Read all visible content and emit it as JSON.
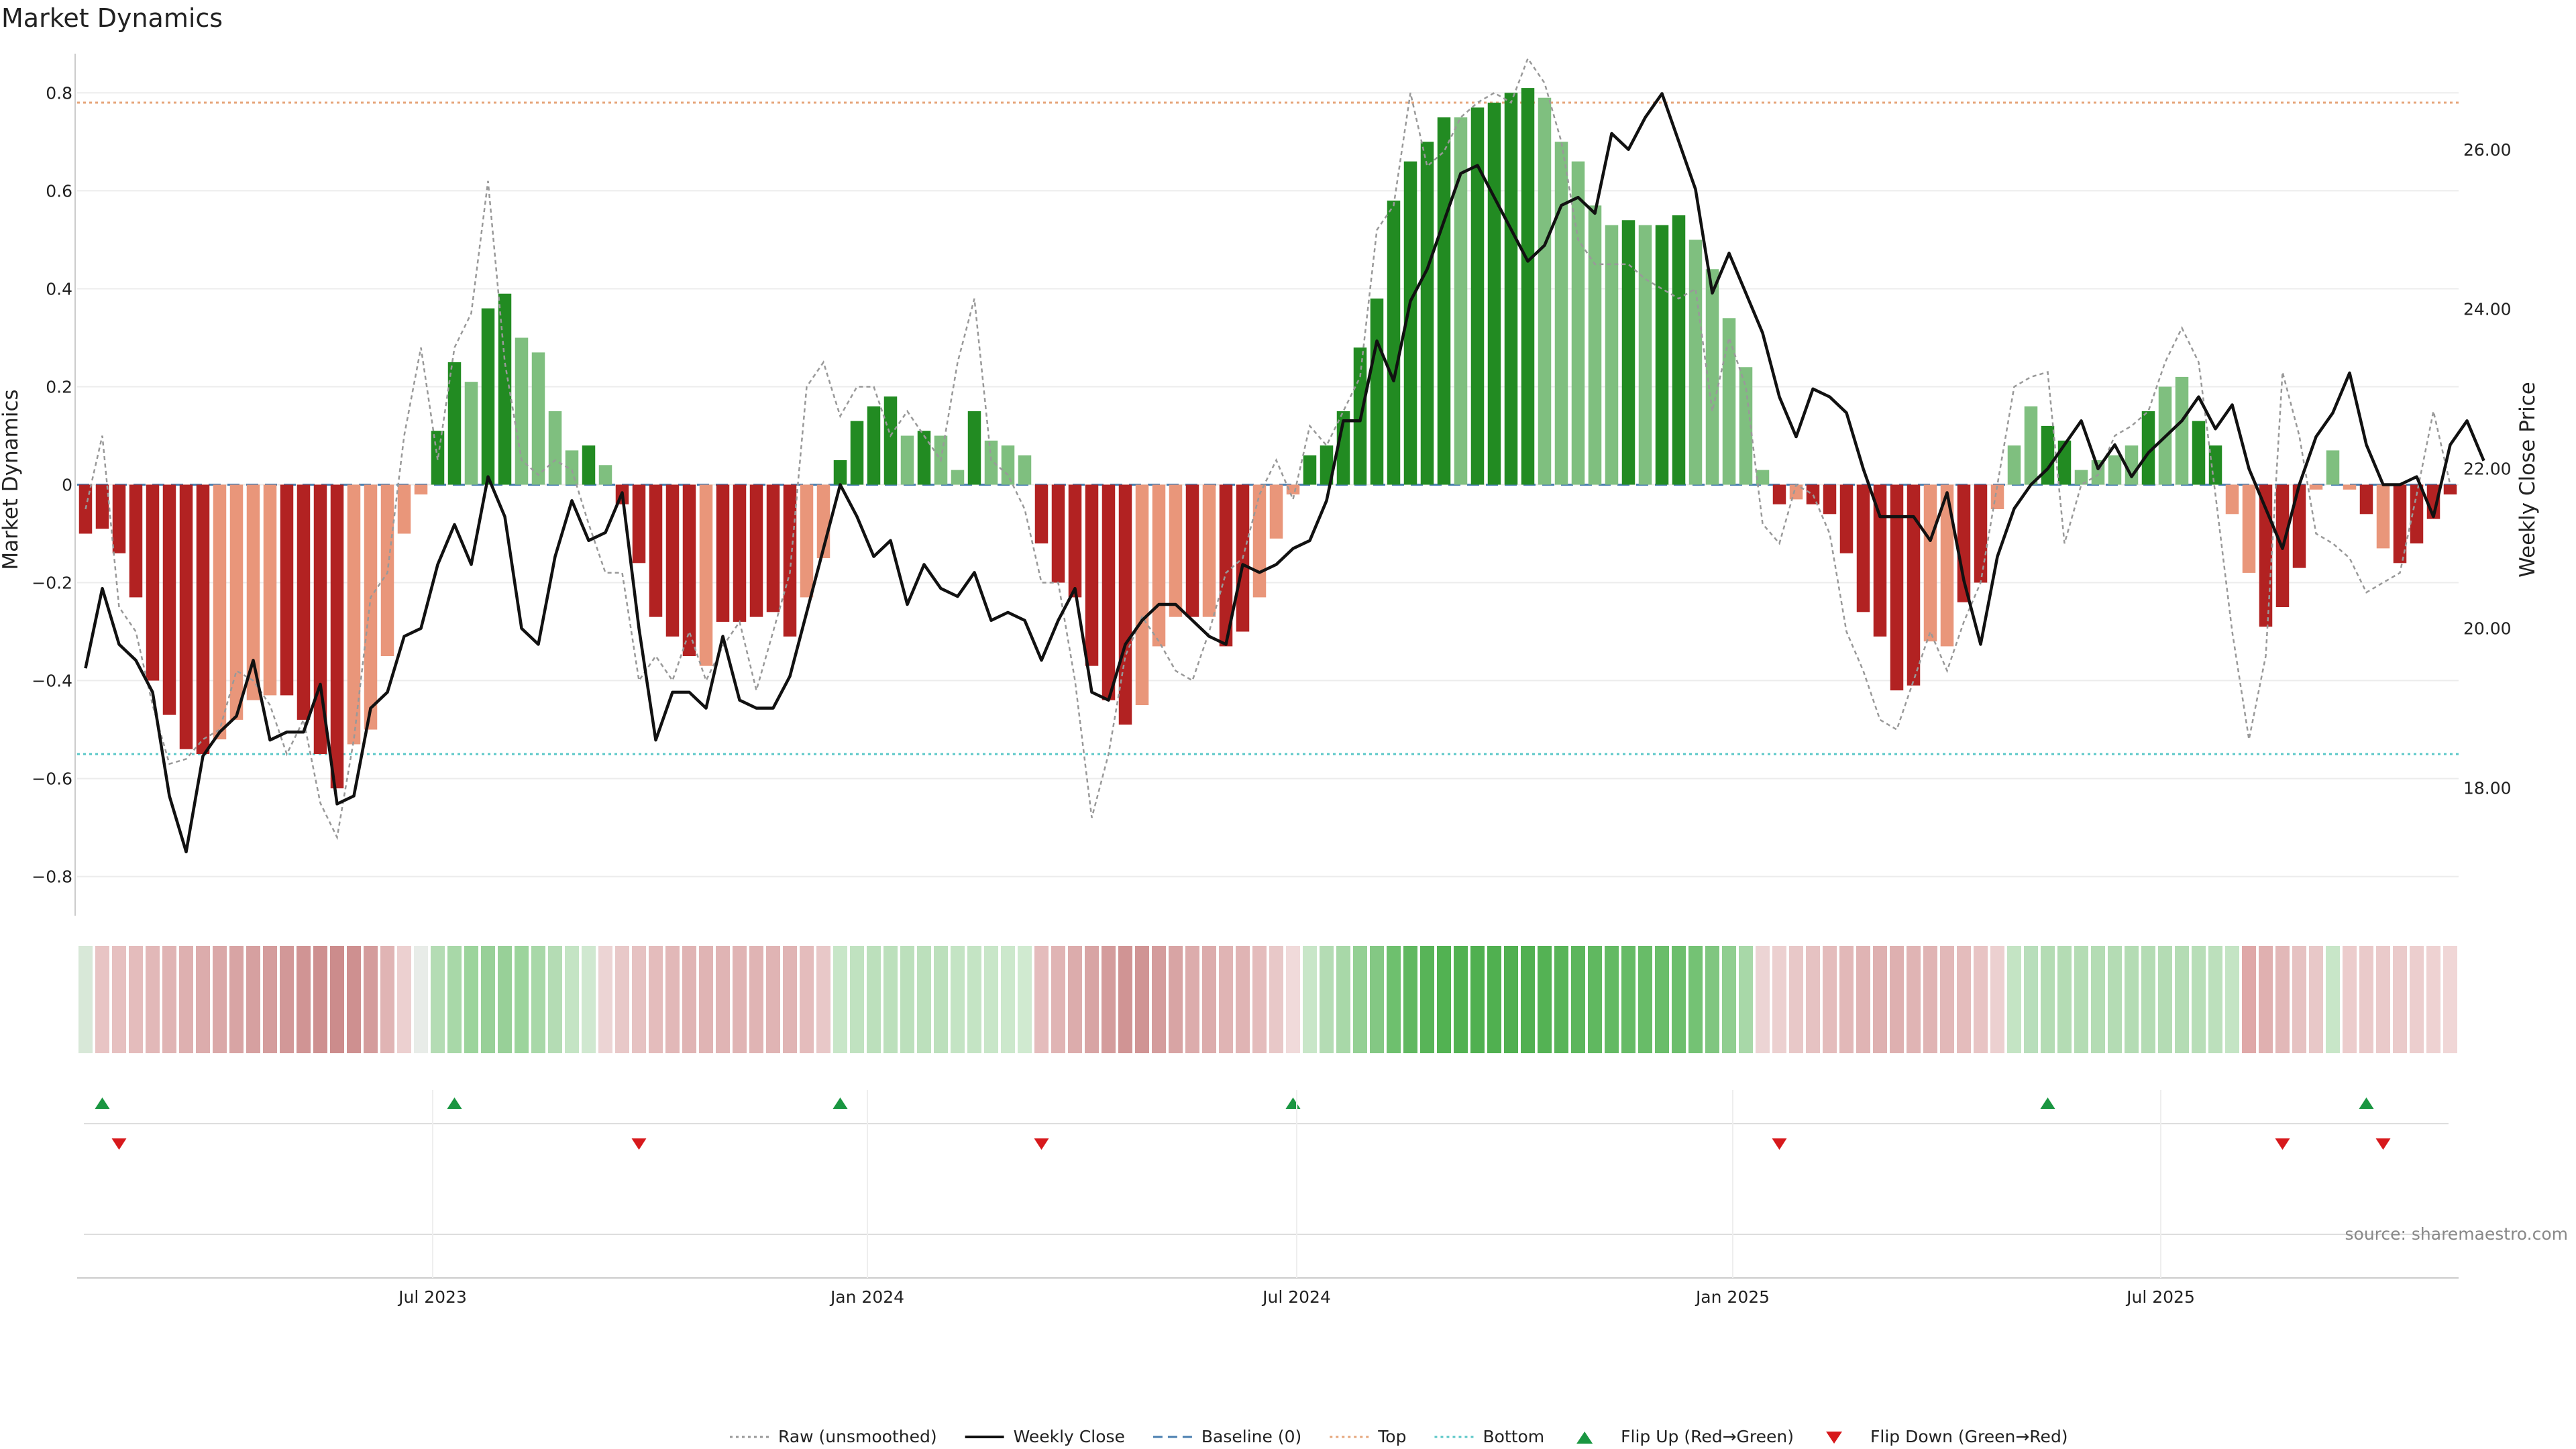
{
  "chart_data": {
    "type": "bar",
    "title": "Market Dynamics",
    "ylabel": "Market Dynamics",
    "y2label": "Weekly Close Price",
    "ylim": [
      -0.88,
      0.88
    ],
    "y2lim": [
      16.4,
      27.2
    ],
    "yticks": [
      -0.8,
      -0.6,
      -0.4,
      -0.2,
      0,
      0.2,
      0.4,
      0.6,
      0.8
    ],
    "y2ticks": [
      "18.00",
      "20.00",
      "22.00",
      "24.00",
      "26.00"
    ],
    "xticks": [
      "Jul 2023",
      "Jan 2024",
      "Jul 2024",
      "Jan 2025",
      "Jul 2025"
    ],
    "top_line": 0.78,
    "bottom_line": -0.55,
    "grid": true,
    "legend_position": "bottom-center",
    "colors": {
      "green_strong": "#228b22",
      "green_light": "#7fbf7f",
      "red_strong": "#b22222",
      "red_light": "#e9967a",
      "top_line": "#e6a57a",
      "bottom_line": "#5bc8c8",
      "baseline": "#4a7fb0",
      "raw": "#999999",
      "close": "#111111",
      "flip_up": "#1a9641",
      "flip_down": "#d7191c"
    },
    "bars": {
      "values": [
        -0.1,
        -0.09,
        -0.14,
        -0.23,
        -0.4,
        -0.47,
        -0.54,
        -0.55,
        -0.52,
        -0.48,
        -0.44,
        -0.43,
        -0.43,
        -0.48,
        -0.55,
        -0.62,
        -0.53,
        -0.5,
        -0.35,
        -0.1,
        -0.02,
        0.11,
        0.25,
        0.21,
        0.36,
        0.39,
        0.3,
        0.27,
        0.15,
        0.07,
        0.08,
        0.04,
        -0.04,
        -0.16,
        -0.27,
        -0.31,
        -0.35,
        -0.37,
        -0.28,
        -0.28,
        -0.27,
        -0.26,
        -0.31,
        -0.23,
        -0.15,
        0.05,
        0.13,
        0.16,
        0.18,
        0.1,
        0.11,
        0.1,
        0.03,
        0.15,
        0.09,
        0.08,
        0.06,
        -0.12,
        -0.2,
        -0.23,
        -0.37,
        -0.44,
        -0.49,
        -0.45,
        -0.33,
        -0.27,
        -0.27,
        -0.27,
        -0.33,
        -0.3,
        -0.23,
        -0.11,
        -0.02,
        0.06,
        0.08,
        0.15,
        0.28,
        0.38,
        0.58,
        0.66,
        0.7,
        0.75,
        0.75,
        0.77,
        0.78,
        0.8,
        0.81,
        0.79,
        0.7,
        0.66,
        0.57,
        0.53,
        0.54,
        0.53,
        0.53,
        0.55,
        0.5,
        0.44,
        0.34,
        0.24,
        0.03,
        -0.04,
        -0.03,
        -0.04,
        -0.06,
        -0.14,
        -0.26,
        -0.31,
        -0.42,
        -0.41,
        -0.32,
        -0.33,
        -0.24,
        -0.2,
        -0.05,
        0.08,
        0.16,
        0.12,
        0.09,
        0.03,
        0.05,
        0.06,
        0.08,
        0.15,
        0.2,
        0.22,
        0.13,
        0.08,
        -0.06,
        -0.18,
        -0.29,
        -0.25,
        -0.17,
        -0.01,
        0.07,
        -0.01,
        -0.06,
        -0.13,
        -0.16,
        -0.12,
        -0.07,
        -0.02
      ],
      "strong": [
        true,
        true,
        true,
        true,
        true,
        true,
        true,
        true,
        false,
        false,
        false,
        false,
        true,
        true,
        true,
        true,
        false,
        false,
        false,
        false,
        false,
        true,
        true,
        false,
        true,
        true,
        false,
        false,
        false,
        false,
        true,
        false,
        true,
        true,
        true,
        true,
        true,
        false,
        true,
        true,
        true,
        true,
        true,
        false,
        false,
        true,
        true,
        true,
        true,
        false,
        true,
        false,
        false,
        true,
        false,
        false,
        false,
        true,
        true,
        true,
        true,
        true,
        true,
        false,
        false,
        false,
        true,
        false,
        true,
        true,
        false,
        false,
        false,
        true,
        true,
        true,
        true,
        true,
        true,
        true,
        true,
        true,
        false,
        true,
        true,
        true,
        true,
        false,
        false,
        false,
        false,
        false,
        true,
        false,
        true,
        true,
        false,
        false,
        false,
        false,
        false,
        true,
        false,
        true,
        true,
        true,
        true,
        true,
        true,
        true,
        false,
        false,
        true,
        true,
        false,
        false,
        false,
        true,
        true,
        false,
        false,
        false,
        false,
        true,
        false,
        false,
        true,
        true,
        false,
        false,
        true,
        true,
        true,
        false,
        false,
        false,
        true,
        false,
        true,
        true,
        true,
        true,
        false,
        false
      ]
    },
    "weekly_close": [
      19.5,
      20.5,
      19.8,
      19.6,
      19.2,
      17.9,
      17.2,
      18.4,
      18.7,
      18.9,
      19.6,
      18.6,
      18.7,
      18.7,
      19.3,
      17.8,
      17.9,
      19.0,
      19.2,
      19.9,
      20.0,
      20.8,
      21.3,
      20.8,
      21.9,
      21.4,
      20.0,
      19.8,
      20.9,
      21.6,
      21.1,
      21.2,
      21.7,
      20.0,
      18.6,
      19.2,
      19.2,
      19.0,
      19.9,
      19.1,
      19.0,
      19.0,
      19.4,
      20.2,
      21.0,
      21.8,
      21.4,
      20.9,
      21.1,
      20.3,
      20.8,
      20.5,
      20.4,
      20.7,
      20.1,
      20.2,
      20.1,
      19.6,
      20.1,
      20.5,
      19.2,
      19.1,
      19.8,
      20.1,
      20.3,
      20.3,
      20.1,
      19.9,
      19.8,
      20.8,
      20.7,
      20.8,
      21.0,
      21.1,
      21.6,
      22.6,
      22.6,
      23.6,
      23.1,
      24.1,
      24.5,
      25.1,
      25.7,
      25.8,
      25.4,
      25.0,
      24.6,
      24.8,
      25.3,
      25.4,
      25.2,
      26.2,
      26.0,
      26.4,
      26.7,
      26.1,
      25.5,
      24.2,
      24.7,
      24.2,
      23.7,
      22.9,
      22.4,
      23.0,
      22.9,
      22.7,
      22.0,
      21.4,
      21.4,
      21.4,
      21.1,
      21.7,
      20.6,
      19.8,
      20.9,
      21.5,
      21.8,
      22.0,
      22.3,
      22.6,
      22.0,
      22.3,
      21.9,
      22.2,
      22.4,
      22.6,
      22.9,
      22.5,
      22.8,
      22.0,
      21.5,
      21.0,
      21.8,
      22.4,
      22.7,
      23.2,
      22.3,
      21.8,
      21.8,
      21.9,
      21.4,
      22.3,
      22.6,
      22.1
    ],
    "raw": [
      -0.05,
      0.1,
      -0.25,
      -0.3,
      -0.45,
      -0.57,
      -0.56,
      -0.52,
      -0.5,
      -0.38,
      -0.4,
      -0.45,
      -0.55,
      -0.48,
      -0.65,
      -0.72,
      -0.52,
      -0.23,
      -0.18,
      0.1,
      0.28,
      0.05,
      0.28,
      0.35,
      0.62,
      0.25,
      0.05,
      0.02,
      0.05,
      0.03,
      -0.08,
      -0.18,
      -0.18,
      -0.4,
      -0.35,
      -0.4,
      -0.3,
      -0.4,
      -0.33,
      -0.28,
      -0.42,
      -0.3,
      -0.18,
      0.2,
      0.25,
      0.14,
      0.2,
      0.2,
      0.1,
      0.15,
      0.1,
      0.05,
      0.25,
      0.38,
      0.05,
      0.02,
      -0.05,
      -0.2,
      -0.2,
      -0.4,
      -0.68,
      -0.55,
      -0.35,
      -0.27,
      -0.32,
      -0.38,
      -0.4,
      -0.3,
      -0.18,
      -0.15,
      -0.02,
      0.05,
      -0.03,
      0.12,
      0.08,
      0.15,
      0.22,
      0.52,
      0.57,
      0.8,
      0.65,
      0.68,
      0.75,
      0.78,
      0.8,
      0.78,
      0.87,
      0.82,
      0.7,
      0.5,
      0.45,
      0.45,
      0.45,
      0.42,
      0.4,
      0.38,
      0.4,
      0.15,
      0.3,
      0.2,
      -0.08,
      -0.12,
      0.0,
      -0.02,
      -0.1,
      -0.3,
      -0.38,
      -0.48,
      -0.5,
      -0.4,
      -0.3,
      -0.38,
      -0.28,
      -0.2,
      0.0,
      0.2,
      0.22,
      0.23,
      -0.12,
      0.0,
      0.02,
      0.1,
      0.12,
      0.15,
      0.25,
      0.32,
      0.25,
      -0.02,
      -0.3,
      -0.52,
      -0.35,
      0.23,
      0.1,
      -0.1,
      -0.12,
      -0.15,
      -0.22,
      -0.2,
      -0.18,
      -0.02,
      0.15,
      0.0
    ],
    "strip_colors": [
      "#d8e8d8",
      "#e8c4c4",
      "#e6c0c0",
      "#e4bcbc",
      "#e2b8b8",
      "#e0b4b4",
      "#deb0b0",
      "#dcacac",
      "#daa8a8",
      "#d8a4a4",
      "#d6a0a0",
      "#d49c9c",
      "#d29898",
      "#d09494",
      "#ce9090",
      "#cc8c8c",
      "#ce9090",
      "#d49c9c",
      "#e0b4b4",
      "#ecd0d0",
      "#e8ecE8",
      "#b4dcb4",
      "#a8d8a8",
      "#9cd49c",
      "#98d098",
      "#98d098",
      "#9cd49c",
      "#a8d8a8",
      "#b4dcb4",
      "#c4e4c4",
      "#d0e8d0",
      "#ecd4d4",
      "#e8c8c8",
      "#e6c2c2",
      "#e4bcbc",
      "#e2b8b8",
      "#e0b4b4",
      "#e0b4b4",
      "#e0b4b4",
      "#e0b4b4",
      "#e0b4b4",
      "#e0b4b4",
      "#e0b4b4",
      "#e4bcbc",
      "#e8c8c8",
      "#c8e6c8",
      "#c0e2c0",
      "#bce0bc",
      "#bce0bc",
      "#bce0bc",
      "#bce0bc",
      "#bce0bc",
      "#c4e4c4",
      "#c4e4c4",
      "#c8e6c8",
      "#cce8cc",
      "#d0eAd0",
      "#e4bcbc",
      "#e0b4b4",
      "#dcacac",
      "#d8a4a4",
      "#d49c9c",
      "#d09494",
      "#d09494",
      "#d49c9c",
      "#d8a4a4",
      "#dcacac",
      "#dcacac",
      "#e0b4b4",
      "#e0b4b4",
      "#e4bcbc",
      "#e8c8c8",
      "#f0dada",
      "#c8e6c8",
      "#b4dcb4",
      "#a8d8a8",
      "#94d094",
      "#84c884",
      "#6ec06e",
      "#60b860",
      "#58b458",
      "#52b252",
      "#52b252",
      "#50b050",
      "#50b050",
      "#50b050",
      "#50b050",
      "#54b254",
      "#58b458",
      "#5cb65c",
      "#60b860",
      "#64ba64",
      "#66bb66",
      "#68bc68",
      "#6abd6a",
      "#6cbe6c",
      "#74c274",
      "#80c680",
      "#90ce90",
      "#a8d8a8",
      "#ecd4d4",
      "#ecd0d0",
      "#e8c8c8",
      "#e6c2c2",
      "#e4bcbc",
      "#e2b8b8",
      "#e0b4b4",
      "#deb0b0",
      "#deb0b0",
      "#e0b4b4",
      "#e0b4b4",
      "#e2b8b8",
      "#e4bcbc",
      "#e8c4c4",
      "#ecd0d0",
      "#c4e4c4",
      "#b8debb",
      "#b4dcb4",
      "#b4dcb4",
      "#b4dcb4",
      "#b4dcb4",
      "#b4dcb4",
      "#b4dcb4",
      "#b4dcb4",
      "#b4dcb4",
      "#b4dcb4",
      "#b8deb8",
      "#bce0bc",
      "#c4e4c4",
      "#dfa8a8",
      "#e0b0b0",
      "#e2b8b8",
      "#e6c2c2",
      "#e8c8c8",
      "#c8e6c8",
      "#eccccc",
      "#eacaca",
      "#eacaca",
      "#eacaca",
      "#eccece",
      "#eed2d2",
      "#f0d6d6"
    ],
    "flip_up_index": [
      1,
      22,
      45,
      72,
      117,
      136
    ],
    "flip_down_index": [
      2,
      33,
      57,
      101,
      131,
      137
    ],
    "legend": [
      {
        "label": "Raw (unsmoothed)",
        "kind": "dotted",
        "color": "#999999"
      },
      {
        "label": "Weekly Close",
        "kind": "solid",
        "color": "#111111"
      },
      {
        "label": "Baseline (0)",
        "kind": "dashed",
        "color": "#4a7fb0"
      },
      {
        "label": "Top",
        "kind": "dotted",
        "color": "#e6a57a"
      },
      {
        "label": "Bottom",
        "kind": "dotted",
        "color": "#5bc8c8"
      },
      {
        "label": "Flip Up (Red→Green)",
        "kind": "tri-up",
        "color": "#1a9641"
      },
      {
        "label": "Flip Down (Green→Red)",
        "kind": "tri-down",
        "color": "#d7191c"
      }
    ],
    "source": "source: sharemaestro.com"
  }
}
